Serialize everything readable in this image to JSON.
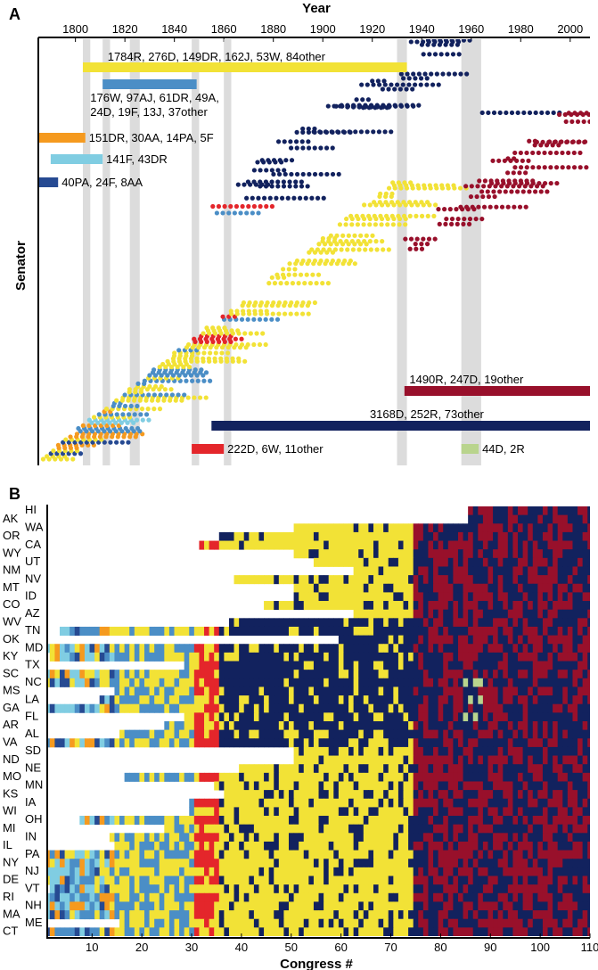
{
  "chart_data": [
    {
      "type": "scatter",
      "panel_label": "A",
      "title": "",
      "xlabel": "Year",
      "ylabel": "Senator",
      "xlim": [
        1785,
        2008
      ],
      "x_ticks": [
        1800,
        1820,
        1840,
        1860,
        1880,
        1900,
        1920,
        1940,
        1960,
        1980,
        2000
      ],
      "party_colors": {
        "R": "#98102b",
        "D": "#12225e",
        "W": "#e4262b",
        "DR": "#f2e236",
        "AJ": "#4b8ec6",
        "F": "#80cde2",
        "PA": "#264a92",
        "AA": "#f59a1f",
        "other": "#b9d48d"
      },
      "gray_bands": [
        {
          "start": 1803,
          "end": 1806
        },
        {
          "start": 1811,
          "end": 1814
        },
        {
          "start": 1822,
          "end": 1826
        },
        {
          "start": 1847,
          "end": 1850
        },
        {
          "start": 1860,
          "end": 1863
        },
        {
          "start": 1930,
          "end": 1934
        },
        {
          "start": 1956,
          "end": 1964
        }
      ],
      "party_bars": [
        {
          "label": "1784R, 276D, 149DR, 162J, 53W, 84other",
          "color": "#f2e236",
          "start": 1803,
          "end": 1934
        },
        {
          "label": "176W, 97AJ, 61DR, 49A,",
          "label2": "24D, 19F, 13J, 37other",
          "color": "#4b8ec6",
          "start": 1811,
          "end": 1849
        },
        {
          "label": "151DR, 30AA, 14PA, 5F",
          "color": "#f59a1f",
          "start": 1785,
          "end": 1804
        },
        {
          "label": "141F, 43DR",
          "color": "#80cde2",
          "start": 1790,
          "end": 1811
        },
        {
          "label": "40PA, 24F, 8AA",
          "color": "#264a92",
          "start": 1785,
          "end": 1793
        },
        {
          "label": "1490R, 247D, 19other",
          "color": "#98102b",
          "start": 1933,
          "end": 2008
        },
        {
          "label": "3168D, 252R, 73other",
          "color": "#12225e",
          "start": 1855,
          "end": 2008
        },
        {
          "label": "222D, 6W, 11other",
          "color": "#e4262b",
          "start": 1847,
          "end": 1860
        },
        {
          "label": "44D, 2R",
          "color": "#b9d48d",
          "start": 1956,
          "end": 1963
        }
      ],
      "series": [
        {
          "name": "D",
          "band_start_year": 1845,
          "band_end_year": 2008,
          "band_top": "upper",
          "values": "dense diagonal band"
        },
        {
          "name": "R",
          "band_start_year": 1930,
          "band_end_year": 2008,
          "band_top": "lower",
          "values": "dense diagonal band"
        },
        {
          "name": "DR",
          "band_start_year": 1785,
          "band_end_year": 1935,
          "values": "dense diagonal band"
        },
        {
          "name": "AJ",
          "band_start_year": 1800,
          "band_end_year": 1855,
          "values": "diagonal band"
        },
        {
          "name": "W",
          "band_start_year": 1846,
          "band_end_year": 1862,
          "values": "short band"
        },
        {
          "name": "F",
          "band_start_year": 1790,
          "band_end_year": 1815,
          "values": "short band"
        },
        {
          "name": "AA",
          "band_start_year": 1785,
          "band_end_year": 1808,
          "values": "short band"
        },
        {
          "name": "PA",
          "band_start_year": 1785,
          "band_end_year": 1795,
          "values": "short band"
        },
        {
          "name": "other",
          "band_start_year": 1956,
          "band_end_year": 1964,
          "values": "short band"
        }
      ]
    },
    {
      "type": "heatmap",
      "panel_label": "B",
      "title": "",
      "xlabel": "Congress #",
      "ylabel": "",
      "xlim": [
        1,
        110
      ],
      "x_ticks": [
        10,
        20,
        30,
        40,
        50,
        60,
        70,
        80,
        90,
        100,
        110
      ],
      "states_left": [
        "AK",
        "OR",
        "WY",
        "NM",
        "MT",
        "CO",
        "WV",
        "OK",
        "KY",
        "SC",
        "MS",
        "GA",
        "AR",
        "VA",
        "ND",
        "MO",
        "KS",
        "WI",
        "MI",
        "IL",
        "NY",
        "DE",
        "RI",
        "MA",
        "CT"
      ],
      "states_right": [
        "HI",
        "WA",
        "CA",
        "UT",
        "NV",
        "ID",
        "AZ",
        "TN",
        "MD",
        "TX",
        "NC",
        "LA",
        "FL",
        "AL",
        "SD",
        "NE",
        "MN",
        "IA",
        "OH",
        "IN",
        "PA",
        "NJ",
        "VT",
        "NH",
        "ME"
      ],
      "state_admission_congress": {
        "HI": 86,
        "AK": 86,
        "WA": 51,
        "OR": 36,
        "CA": 32,
        "WY": 51,
        "UT": 55,
        "NM": 63,
        "NV": 39,
        "MT": 51,
        "ID": 51,
        "CO": 45,
        "AZ": 63,
        "WV": 38,
        "TN": 4,
        "OK": 60,
        "MD": 1,
        "KY": 2,
        "TX": 29,
        "SC": 1,
        "NC": 1,
        "MS": 15,
        "LA": 12,
        "GA": 1,
        "FL": 29,
        "AR": 25,
        "AL": 16,
        "VA": 1,
        "SD": 51,
        "ND": 51,
        "NE": 40,
        "MO": 17,
        "MN": 35,
        "KS": 37,
        "IA": 30,
        "WI": 30,
        "OH": 8,
        "MI": 25,
        "IN": 14,
        "IL": 15,
        "PA": 1,
        "NY": 1,
        "NJ": 1,
        "DE": 1,
        "VT": 2,
        "RI": 1,
        "NH": 1,
        "MA": 1,
        "ME": 16,
        "CT": 1
      },
      "era_colors": [
        {
          "party": "F/PA/AA/AJ",
          "congress_range": [
            1,
            15
          ]
        },
        {
          "party": "AJ/DR",
          "congress_range": [
            15,
            31
          ]
        },
        {
          "party": "W",
          "congress_range": [
            31,
            36
          ]
        },
        {
          "party": "DR/D mix",
          "congress_range": [
            36,
            75
          ]
        },
        {
          "party": "R/D mix",
          "congress_range": [
            75,
            110
          ]
        },
        {
          "party": "other",
          "congress_range": [
            85,
            88
          ]
        }
      ]
    }
  ]
}
